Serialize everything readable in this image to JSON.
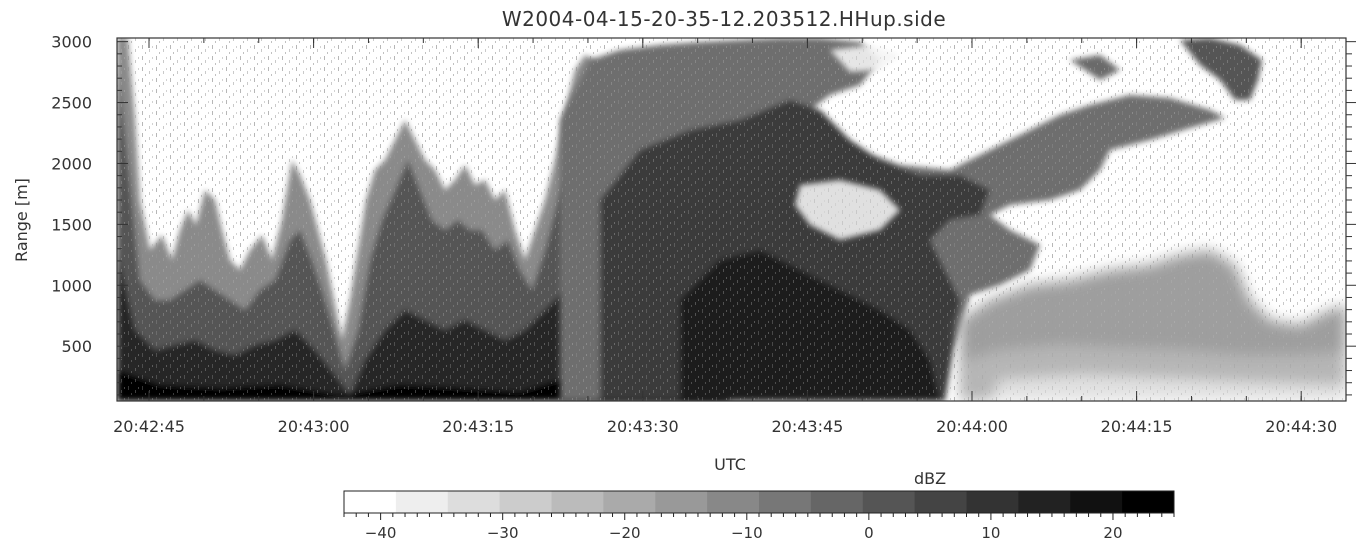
{
  "chart_data": {
    "type": "heatmap",
    "title": "W2004-04-15-20-35-12.203512.HHup.side",
    "xlabel": "UTC",
    "ylabel": "Range [m]",
    "x_ticks": [
      "20:42:45",
      "20:43:00",
      "20:43:15",
      "20:43:30",
      "20:43:45",
      "20:44:00",
      "20:44:15",
      "20:44:30"
    ],
    "y_ticks": [
      500,
      1000,
      1500,
      2000,
      2500,
      3000
    ],
    "ylim": [
      50,
      3030
    ],
    "colorbar": {
      "label": "dBZ",
      "range": [
        -43,
        25
      ],
      "ticks": [
        -40,
        -30,
        -20,
        -10,
        0,
        10,
        20
      ],
      "scale": "grayscale, light to dark with increasing dBZ"
    },
    "description_values": {
      "clear_region_color": "#ffffff",
      "max_color": "#000000"
    }
  }
}
